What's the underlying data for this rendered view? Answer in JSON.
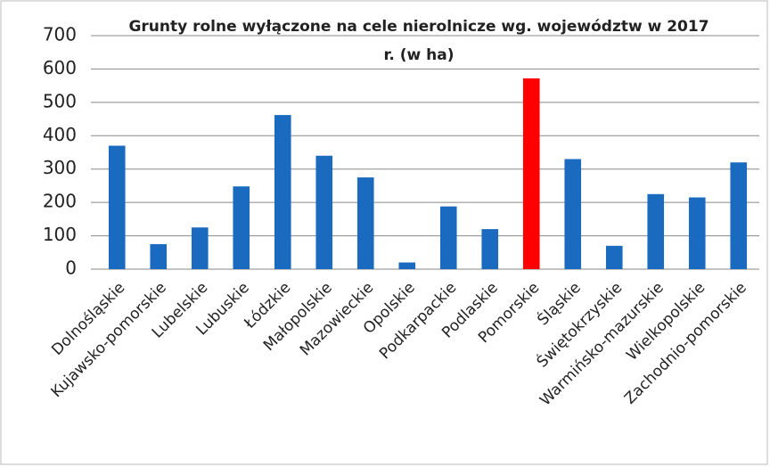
{
  "chart_data": {
    "type": "bar",
    "title": "Grunty rolne wyłączone na cele nierolnicze wg. województw w 2017 r. (w ha)",
    "categories": [
      "Dolnośląskie",
      "Kujawsko-pomorskie",
      "Lubelskie",
      "Lubuskie",
      "Łódzkie",
      "Małopolskie",
      "Mazowieckie",
      "Opolskie",
      "Podkarpackie",
      "Podlaskie",
      "Pomorskie",
      "Śląskie",
      "Świętokrzyskie",
      "Warmińsko-mazurskie",
      "Wielkopolskie",
      "Zachodnio-pomorskie"
    ],
    "values": [
      370,
      75,
      125,
      248,
      462,
      340,
      275,
      20,
      188,
      120,
      572,
      330,
      70,
      225,
      215,
      320
    ],
    "colors": [
      "#1a6bbf",
      "#1a6bbf",
      "#1a6bbf",
      "#1a6bbf",
      "#1a6bbf",
      "#1a6bbf",
      "#1a6bbf",
      "#1a6bbf",
      "#1a6bbf",
      "#1a6bbf",
      "#ff0000",
      "#1a6bbf",
      "#1a6bbf",
      "#1a6bbf",
      "#1a6bbf",
      "#1a6bbf"
    ],
    "ylim": [
      0,
      700
    ],
    "yticks": [
      0,
      100,
      200,
      300,
      400,
      500,
      600,
      700
    ],
    "grid": true
  }
}
